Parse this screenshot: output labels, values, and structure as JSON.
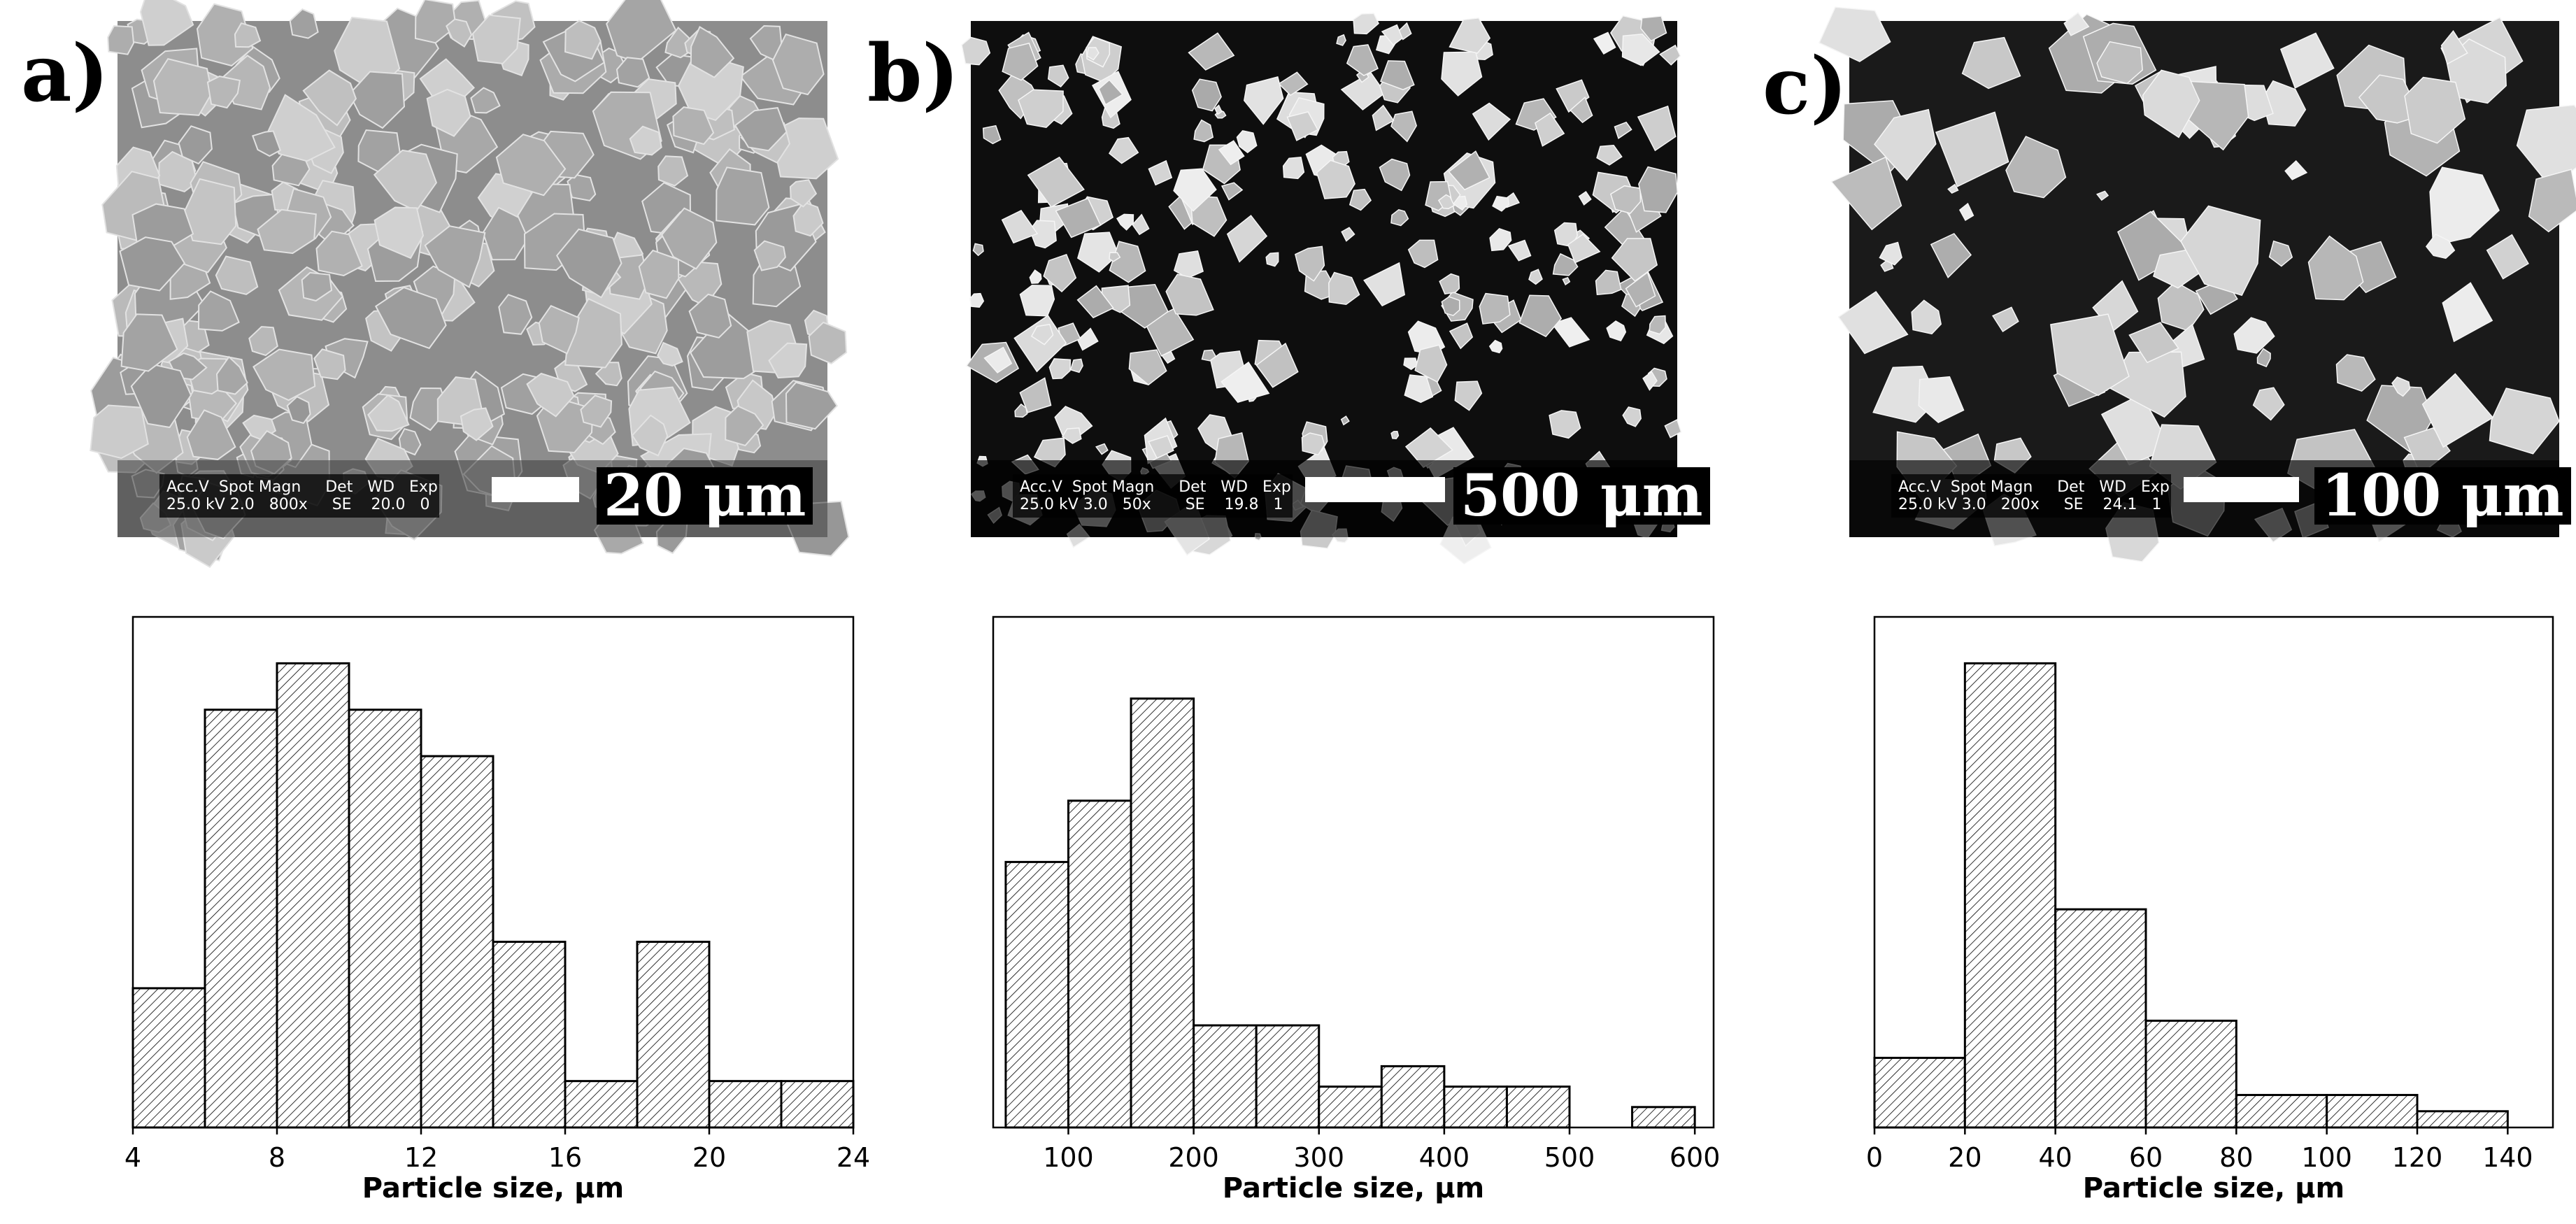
{
  "panels": [
    {
      "label": "a)",
      "sem": {
        "detector_header": "Acc.V  Spot Magn     Det   WD   Exp",
        "detector_values": "25.0 kV 2.0   800x     SE    20.0   0",
        "scale_label": "20 μm",
        "appearance": "light",
        "colors": {
          "background": "#8d8d8d",
          "particle": "#b8b8b8"
        }
      }
    },
    {
      "label": "b)",
      "sem": {
        "detector_header": "Acc.V  Spot Magn     Det   WD   Exp",
        "detector_values": "25.0 kV 3.0   50x       SE    19.8   1",
        "scale_label": "500 μm",
        "appearance": "dark",
        "colors": {
          "background": "#0e0e0e",
          "particle": "#d6d6d6"
        }
      }
    },
    {
      "label": "c)",
      "sem": {
        "detector_header": "Acc.V  Spot Magn     Det   WD   Exp",
        "detector_values": "25.0 kV 3.0   200x     SE    24.1   1",
        "scale_label": "100 μm",
        "appearance": "dark",
        "colors": {
          "background": "#1a1a1a",
          "particle": "#e2e2e2"
        }
      }
    }
  ],
  "chart_data": [
    {
      "type": "bar",
      "histogram": true,
      "xlabel": "Particle size, μm",
      "ylabel": "",
      "xlim": [
        4,
        24
      ],
      "ylim": [
        0,
        110
      ],
      "xticks": [
        4,
        8,
        12,
        16,
        20,
        24
      ],
      "bins": [
        {
          "x0": 4,
          "x1": 6,
          "value": 30
        },
        {
          "x0": 6,
          "x1": 8,
          "value": 90
        },
        {
          "x0": 8,
          "x1": 10,
          "value": 100
        },
        {
          "x0": 10,
          "x1": 12,
          "value": 90
        },
        {
          "x0": 12,
          "x1": 14,
          "value": 80
        },
        {
          "x0": 14,
          "x1": 16,
          "value": 40
        },
        {
          "x0": 16,
          "x1": 18,
          "value": 10
        },
        {
          "x0": 18,
          "x1": 20,
          "value": 40
        },
        {
          "x0": 20,
          "x1": 22,
          "value": 10
        },
        {
          "x0": 22,
          "x1": 24,
          "value": 10
        }
      ],
      "grid": false,
      "fill": "hatched"
    },
    {
      "type": "bar",
      "histogram": true,
      "xlabel": "Particle size, μm",
      "ylabel": "",
      "xlim": [
        40,
        615
      ],
      "ylim": [
        0,
        100
      ],
      "xticks": [
        100,
        200,
        300,
        400,
        500,
        600
      ],
      "bins": [
        {
          "x0": 50,
          "x1": 100,
          "value": 52
        },
        {
          "x0": 100,
          "x1": 150,
          "value": 64
        },
        {
          "x0": 150,
          "x1": 200,
          "value": 84
        },
        {
          "x0": 200,
          "x1": 250,
          "value": 20
        },
        {
          "x0": 250,
          "x1": 300,
          "value": 20
        },
        {
          "x0": 300,
          "x1": 350,
          "value": 8
        },
        {
          "x0": 350,
          "x1": 400,
          "value": 12
        },
        {
          "x0": 400,
          "x1": 450,
          "value": 8
        },
        {
          "x0": 450,
          "x1": 500,
          "value": 8
        },
        {
          "x0": 550,
          "x1": 600,
          "value": 4
        }
      ],
      "grid": false,
      "fill": "hatched"
    },
    {
      "type": "bar",
      "histogram": true,
      "xlabel": "Particle size, μm",
      "ylabel": "",
      "xlim": [
        0,
        150
      ],
      "ylim": [
        0,
        110
      ],
      "xticks": [
        0,
        20,
        40,
        60,
        80,
        100,
        120,
        140
      ],
      "bins": [
        {
          "x0": 0,
          "x1": 20,
          "value": 15
        },
        {
          "x0": 20,
          "x1": 40,
          "value": 100
        },
        {
          "x0": 40,
          "x1": 60,
          "value": 47
        },
        {
          "x0": 60,
          "x1": 80,
          "value": 23
        },
        {
          "x0": 80,
          "x1": 100,
          "value": 7
        },
        {
          "x0": 100,
          "x1": 120,
          "value": 7
        },
        {
          "x0": 120,
          "x1": 140,
          "value": 3.5
        }
      ],
      "grid": false,
      "fill": "hatched"
    }
  ]
}
